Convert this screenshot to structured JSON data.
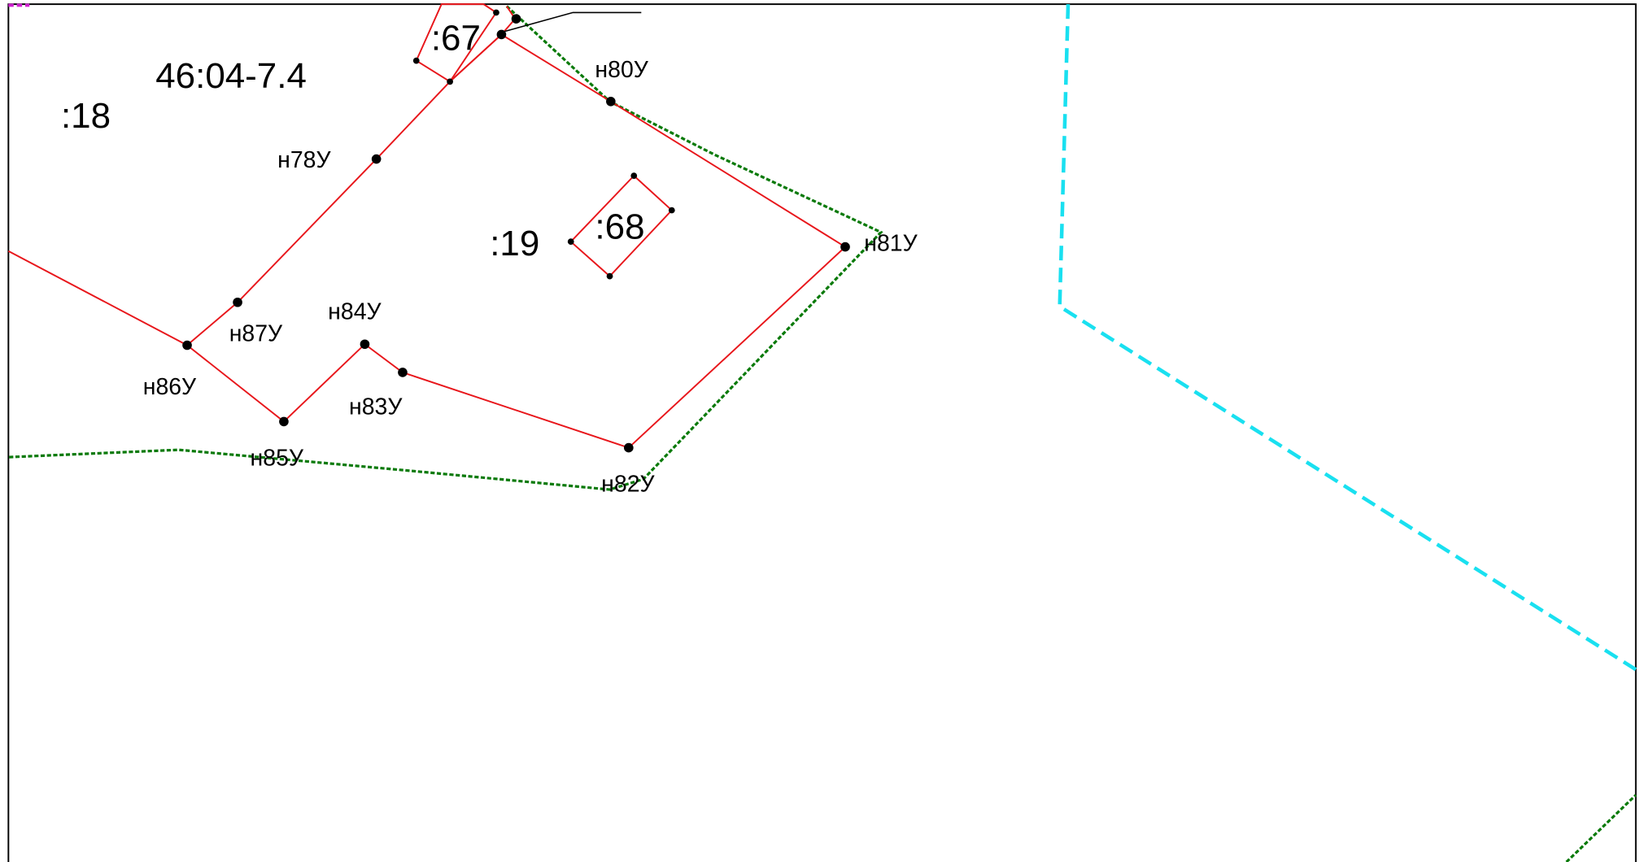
{
  "map": {
    "parcel_labels": [
      "46:04-7.4",
      ":18",
      ":67",
      ":19",
      ":68"
    ],
    "point_labels": [
      "н78У",
      "н80У",
      "н81У",
      "н82У",
      "н83У",
      "н84У",
      "н85У",
      "н86У",
      "н87У"
    ]
  }
}
